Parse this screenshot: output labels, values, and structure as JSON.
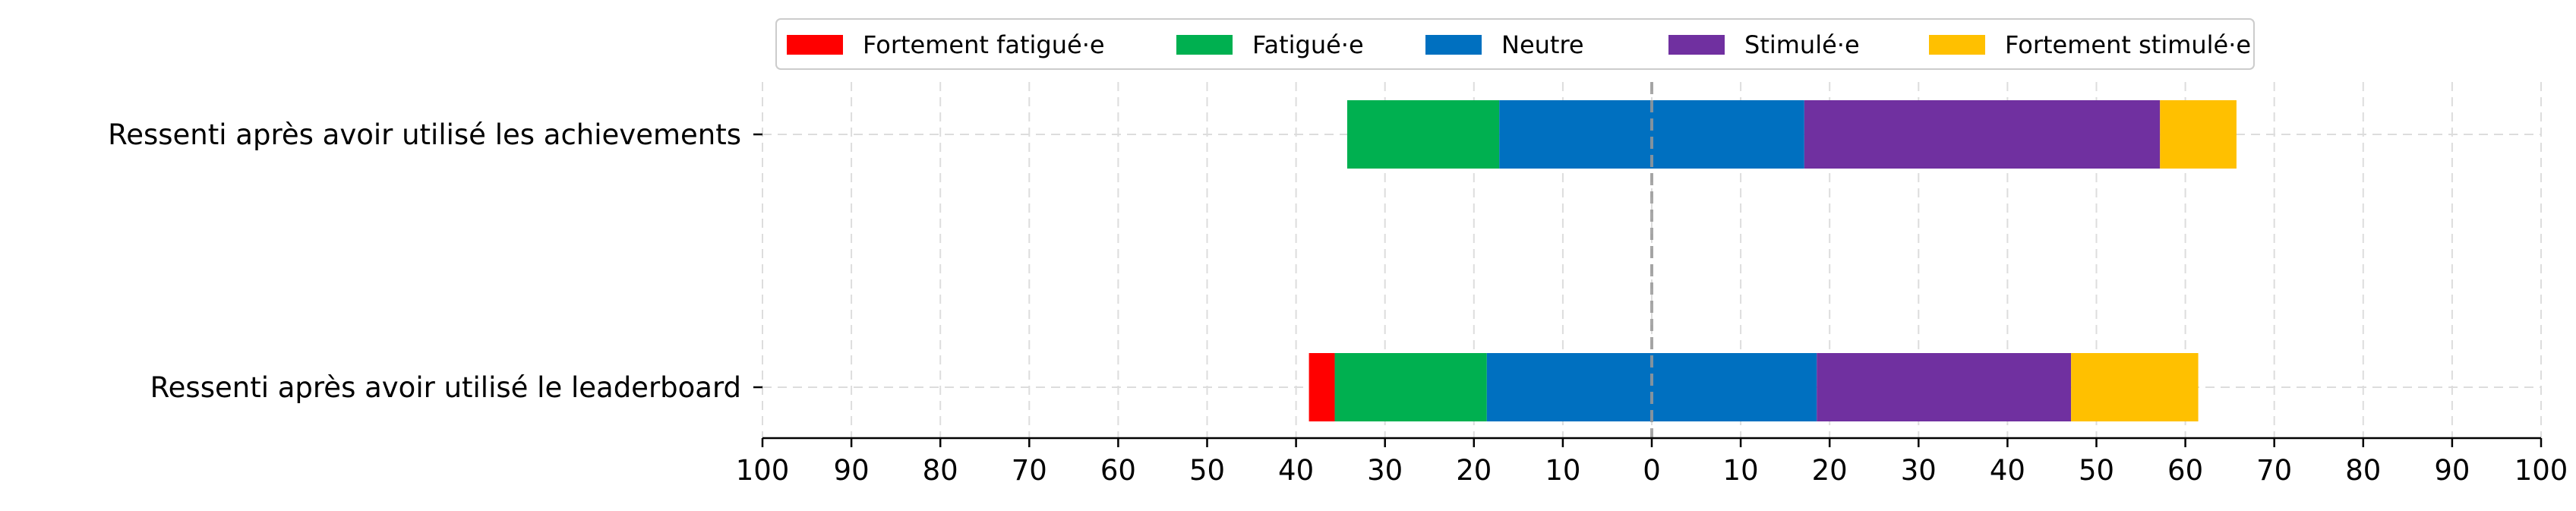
{
  "chart_data": {
    "type": "bar",
    "orientation": "horizontal-diverging",
    "stacked": true,
    "categories": [
      "Ressenti après avoir utilisé les achievements",
      "Ressenti après avoir utilisé le leaderboard"
    ],
    "series": [
      {
        "name": "Fortement fatigué·e",
        "color": "#ff0000",
        "values": [
          0,
          2.9
        ]
      },
      {
        "name": "Fatigué·e",
        "color": "#00b050",
        "values": [
          17.1,
          17.1
        ]
      },
      {
        "name": "Neutre",
        "color": "#0070c0",
        "values": [
          34.3,
          37.1
        ]
      },
      {
        "name": "Stimulé·e",
        "color": "#7030a0",
        "values": [
          40.0,
          28.6
        ]
      },
      {
        "name": "Fortement stimulé·e",
        "color": "#ffc000",
        "values": [
          8.6,
          14.3
        ]
      }
    ],
    "xlim": [
      -100,
      100
    ],
    "xticks": [
      -100,
      -90,
      -80,
      -70,
      -60,
      -50,
      -40,
      -30,
      -20,
      -10,
      0,
      10,
      20,
      30,
      40,
      50,
      60,
      70,
      80,
      90,
      100
    ],
    "xtick_labels": [
      "100",
      "90",
      "80",
      "70",
      "60",
      "50",
      "40",
      "30",
      "20",
      "10",
      "0",
      "10",
      "20",
      "30",
      "40",
      "50",
      "60",
      "70",
      "80",
      "90",
      "100"
    ],
    "grid": true,
    "zero_line": true,
    "legend_position": "top-center",
    "title": "",
    "xlabel": "",
    "ylabel": ""
  }
}
